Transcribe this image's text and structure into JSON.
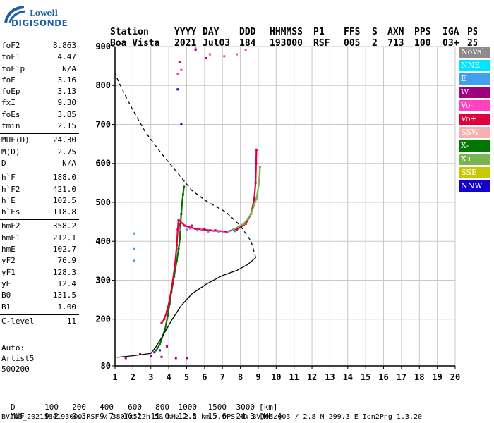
{
  "logo": {
    "line1": "Lowell",
    "line2": "DIGISONDE"
  },
  "header": {
    "labels": [
      "Station",
      "YYYY",
      "DAY",
      "DDD",
      "HHMMSS",
      "P1",
      "FFS",
      "S",
      "AXN",
      "PPS",
      "IGA",
      "PS"
    ],
    "values": [
      "Boa Vista",
      "2021",
      "Jul03",
      "184",
      "193000",
      "RSF",
      "005",
      "2",
      "713",
      "100",
      "03+",
      "25"
    ]
  },
  "params": [
    {
      "group": [
        {
          "name": "foF2",
          "value": "8.863"
        },
        {
          "name": "foF1",
          "value": "4.47"
        },
        {
          "name": "foF1p",
          "value": "N/A"
        },
        {
          "name": "foE",
          "value": "3.16"
        },
        {
          "name": "foEp",
          "value": "3.13"
        },
        {
          "name": "fxI",
          "value": "9.30"
        },
        {
          "name": "foEs",
          "value": "3.85"
        },
        {
          "name": "fmin",
          "value": "2.15"
        }
      ]
    },
    {
      "group": [
        {
          "name": "MUF(D)",
          "value": "24.30"
        },
        {
          "name": "M(D)",
          "value": "2.75"
        },
        {
          "name": "D",
          "value": "N/A"
        }
      ]
    },
    {
      "group": [
        {
          "name": "h`F",
          "value": "188.0"
        },
        {
          "name": "h`F2",
          "value": "421.0"
        },
        {
          "name": "h`E",
          "value": "102.5"
        },
        {
          "name": "h`Es",
          "value": "118.8"
        }
      ]
    },
    {
      "group": [
        {
          "name": "hmF2",
          "value": "358.2"
        },
        {
          "name": "hmF1",
          "value": "212.1"
        },
        {
          "name": "hmE",
          "value": "102.7"
        },
        {
          "name": "yF2",
          "value": "76.9"
        },
        {
          "name": "yF1",
          "value": "128.3"
        },
        {
          "name": "yE",
          "value": "12.4"
        },
        {
          "name": "B0",
          "value": "131.5"
        },
        {
          "name": "B1",
          "value": "1.00"
        }
      ]
    },
    {
      "group": [
        {
          "name": "C-level",
          "value": "11"
        }
      ]
    }
  ],
  "auto": [
    "Auto:",
    "Artist5",
    "500200"
  ],
  "legend": [
    {
      "label": "NoVal",
      "color": "#8c8c8c"
    },
    {
      "label": "NNE",
      "color": "#00e5ff"
    },
    {
      "label": "E",
      "color": "#3fa0f0"
    },
    {
      "label": "W",
      "color": "#a00080"
    },
    {
      "label": "Vo-",
      "color": "#ff40c0"
    },
    {
      "label": "Vo+",
      "color": "#e0003c"
    },
    {
      "label": "SSW",
      "color": "#f5b0b0"
    },
    {
      "label": "X-",
      "color": "#007800"
    },
    {
      "label": "X+",
      "color": "#78b450"
    },
    {
      "label": "SSE",
      "color": "#c8c800"
    },
    {
      "label": "NNW",
      "color": "#1400c8"
    }
  ],
  "bottom": {
    "row1_label": "D",
    "row1_values": [
      "100",
      "200",
      "400",
      "600",
      "800",
      "1000",
      "1500",
      "3000"
    ],
    "row1_unit": "[km]",
    "row2_label": "MUF",
    "row2_values": [
      "9.2",
      "9.3",
      "9.7",
      "10.2",
      "11.0",
      "12.2",
      "15.6",
      "24.3"
    ],
    "row2_unit": "[MHz]"
  },
  "footer": "BVJ03_2021184193000.RSF / 380fx512h 50 kHz 2.5 km / DPS-4D BVJ03 003 / 2.8 N 299.3 E Ion2Png 1.3.20",
  "chart_data": {
    "type": "scatter",
    "x_ticks": [
      1,
      2,
      3,
      4,
      5,
      6,
      7,
      8,
      9,
      10,
      11,
      12,
      13,
      14,
      15,
      16,
      17,
      18,
      19,
      20
    ],
    "y_ticks": [
      80,
      200,
      300,
      400,
      500,
      600,
      700,
      800,
      900
    ],
    "xlim": [
      1,
      20
    ],
    "ylim": [
      80,
      900
    ],
    "grid": true,
    "series": [
      {
        "name": "X-",
        "color": "#007800",
        "points": [
          [
            3.3,
            120
          ],
          [
            3.5,
            135
          ],
          [
            3.8,
            175
          ],
          [
            3.95,
            210
          ],
          [
            4.05,
            240
          ],
          [
            4.15,
            270
          ],
          [
            4.3,
            310
          ],
          [
            4.45,
            350
          ],
          [
            4.55,
            380
          ],
          [
            4.62,
            405
          ],
          [
            4.65,
            440
          ],
          [
            4.7,
            470
          ],
          [
            4.75,
            500
          ],
          [
            4.8,
            520
          ],
          [
            4.85,
            540
          ]
        ]
      },
      {
        "name": "Vo+",
        "color": "#e0003c",
        "points": [
          [
            3.6,
            190
          ],
          [
            3.75,
            200
          ],
          [
            3.9,
            220
          ],
          [
            4.05,
            250
          ],
          [
            4.2,
            290
          ],
          [
            4.35,
            340
          ],
          [
            4.45,
            390
          ],
          [
            4.5,
            430
          ],
          [
            4.55,
            455
          ],
          [
            4.9,
            440
          ],
          [
            5.5,
            432
          ],
          [
            6.3,
            428
          ],
          [
            7.2,
            425
          ],
          [
            7.8,
            430
          ],
          [
            8.3,
            445
          ],
          [
            8.6,
            470
          ],
          [
            8.78,
            510
          ],
          [
            8.85,
            550
          ],
          [
            8.88,
            600
          ],
          [
            8.9,
            635
          ]
        ]
      },
      {
        "name": "X+",
        "color": "#78b450",
        "points": [
          [
            7.6,
            430
          ],
          [
            8.2,
            445
          ],
          [
            8.6,
            470
          ],
          [
            8.9,
            510
          ],
          [
            9.05,
            550
          ],
          [
            9.1,
            590
          ]
        ]
      },
      {
        "name": "E",
        "color": "#3fa0f0",
        "points": [
          [
            5.0,
            430
          ],
          [
            5.6,
            428
          ],
          [
            6.2,
            425
          ],
          [
            6.8,
            424
          ],
          [
            7.3,
            423
          ],
          [
            7.7,
            426
          ],
          [
            2.05,
            420
          ],
          [
            2.05,
            380
          ],
          [
            2.05,
            350
          ]
        ]
      },
      {
        "name": "Vo-",
        "color": "#ff40c0",
        "points": [
          [
            4.6,
            430
          ],
          [
            5.2,
            433
          ],
          [
            5.8,
            430
          ],
          [
            6.5,
            427
          ],
          [
            7.0,
            425
          ],
          [
            5.5,
            895
          ],
          [
            6.3,
            880
          ],
          [
            7.1,
            875
          ],
          [
            7.8,
            880
          ],
          [
            8.3,
            890
          ],
          [
            4.7,
            840
          ],
          [
            4.5,
            830
          ]
        ]
      },
      {
        "name": "W",
        "color": "#a00080",
        "points": [
          [
            4.6,
            445
          ],
          [
            5.3,
            440
          ],
          [
            6.0,
            432
          ],
          [
            6.6,
            428
          ],
          [
            3.0,
            105
          ],
          [
            3.6,
            103
          ],
          [
            4.4,
            100
          ],
          [
            5.0,
            100
          ],
          [
            1.6,
            100
          ],
          [
            2.4,
            110
          ],
          [
            3.9,
            130
          ],
          [
            4.6,
            860
          ],
          [
            5.5,
            890
          ],
          [
            6.1,
            870
          ]
        ]
      },
      {
        "name": "NNW",
        "color": "#1400c8",
        "points": [
          [
            3.2,
            115
          ],
          [
            3.5,
            120
          ],
          [
            4.7,
            700
          ],
          [
            4.5,
            790
          ]
        ]
      },
      {
        "name": "profile",
        "color": "#000000",
        "points": [
          [
            1.1,
            102
          ],
          [
            2,
            106
          ],
          [
            3,
            112
          ],
          [
            3.3,
            130
          ],
          [
            3.7,
            160
          ],
          [
            4.2,
            200
          ],
          [
            4.7,
            235
          ],
          [
            5.3,
            265
          ],
          [
            6.1,
            290
          ],
          [
            7.0,
            312
          ],
          [
            7.8,
            325
          ],
          [
            8.4,
            340
          ],
          [
            8.86,
            358
          ],
          [
            8.6,
            400
          ],
          [
            8.0,
            440
          ],
          [
            7.2,
            475
          ],
          [
            6.2,
            500
          ],
          [
            5.3,
            530
          ],
          [
            4.5,
            575
          ],
          [
            3.6,
            625
          ],
          [
            2.7,
            680
          ],
          [
            1.9,
            745
          ],
          [
            1.3,
            800
          ],
          [
            1.0,
            830
          ]
        ]
      }
    ]
  }
}
